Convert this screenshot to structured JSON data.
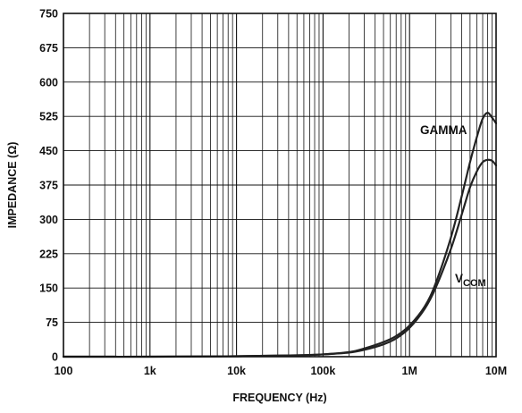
{
  "chart_data": {
    "type": "line",
    "title": "",
    "xlabel": "FREQUENCY (Hz)",
    "ylabel": "IMPEDANCE (Ω)",
    "xscale": "log",
    "xlim": [
      100,
      10000000
    ],
    "ylim": [
      0,
      750
    ],
    "grid": true,
    "x_ticks": [
      {
        "value": 100,
        "label": "100"
      },
      {
        "value": 1000,
        "label": "1k"
      },
      {
        "value": 10000,
        "label": "10k"
      },
      {
        "value": 100000,
        "label": "100k"
      },
      {
        "value": 1000000,
        "label": "1M"
      },
      {
        "value": 10000000,
        "label": "10M"
      }
    ],
    "y_ticks": [
      0,
      75,
      150,
      225,
      300,
      375,
      450,
      525,
      600,
      675,
      750
    ],
    "series": [
      {
        "name": "GAMMA",
        "label_main": "GAMMA",
        "label_sub": "",
        "x": [
          100,
          1000,
          10000,
          50000,
          100000,
          200000,
          300000,
          500000,
          700000,
          1000000,
          1500000,
          2000000,
          3000000,
          4000000,
          5000000,
          6000000,
          7000000,
          8000000,
          9000000,
          10000000
        ],
        "y": [
          0,
          0,
          1,
          3,
          5,
          10,
          18,
          32,
          45,
          68,
          110,
          160,
          260,
          350,
          425,
          480,
          520,
          533,
          522,
          510
        ]
      },
      {
        "name": "VCOM",
        "label_main": "V",
        "label_sub": "COM",
        "x": [
          100,
          1000,
          10000,
          50000,
          100000,
          200000,
          300000,
          500000,
          700000,
          1000000,
          1500000,
          2000000,
          3000000,
          4000000,
          5000000,
          6000000,
          7000000,
          8000000,
          9000000,
          10000000
        ],
        "y": [
          0,
          0,
          1,
          3,
          5,
          9,
          15,
          27,
          40,
          63,
          105,
          150,
          235,
          310,
          370,
          405,
          425,
          430,
          428,
          418
        ]
      }
    ],
    "colors": {
      "line": "#222222",
      "grid": "#111111",
      "text": "#111111"
    }
  }
}
